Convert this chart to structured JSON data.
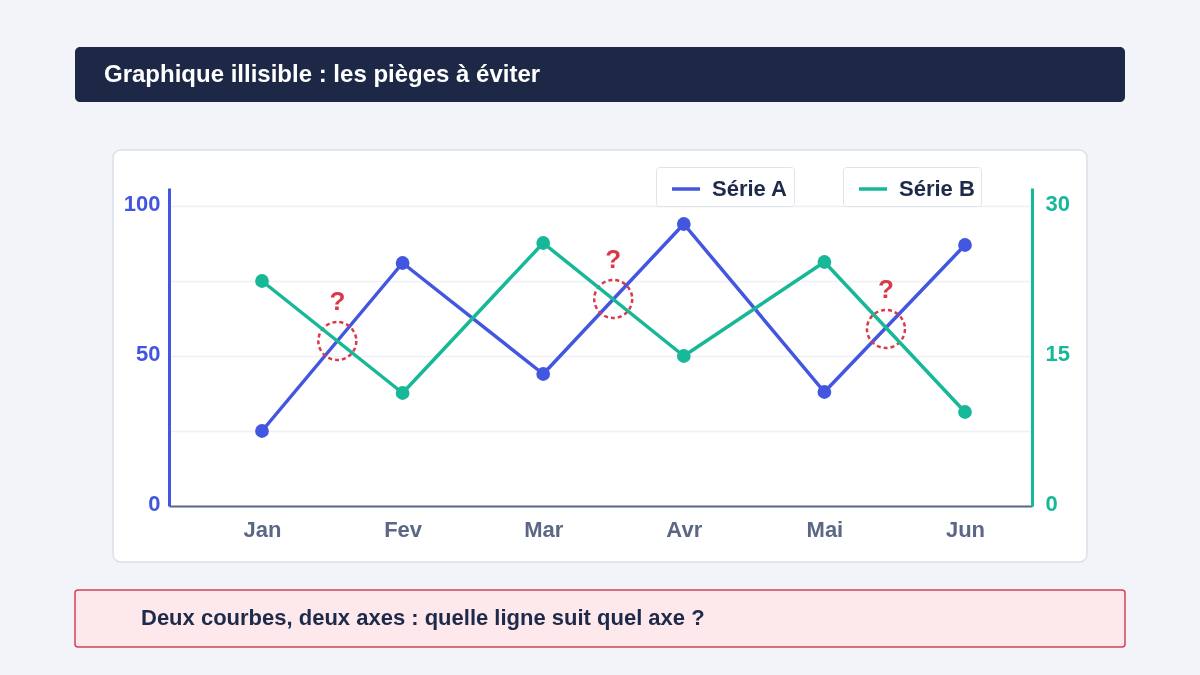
{
  "chart_data": {
    "type": "line",
    "title": "Graphique illisible : les pièges à éviter",
    "categories": [
      "Jan",
      "Fev",
      "Mar",
      "Avr",
      "Mai",
      "Jun"
    ],
    "series": [
      {
        "name": "Série A",
        "color": "#4356e0",
        "values": [
          25,
          81,
          44,
          94,
          38,
          87
        ]
      },
      {
        "name": "Série B",
        "color": "#17b897",
        "values": [
          22.5,
          11.3,
          26.3,
          15,
          24.4,
          9.4
        ],
        "axis": "y2"
      }
    ],
    "ylim": [
      0,
      106
    ],
    "yticks": [
      0,
      {
        "value": 25,
        "label": null
      },
      50,
      {
        "value": 75,
        "label": null
      },
      100
    ],
    "y2lim": [
      0,
      31.8
    ],
    "y2ticks": [
      0,
      15,
      30
    ],
    "grid": "y",
    "legend": "top right",
    "marker": "circle",
    "line_style": "solid",
    "annotations": [
      {
        "text": "?",
        "y": 55
      },
      {
        "text": "?",
        "y": 69
      },
      {
        "text": "?",
        "y": 59
      },
      "Deux courbes, deux axes : quelle ligne suit quel axe ?"
    ]
  }
}
